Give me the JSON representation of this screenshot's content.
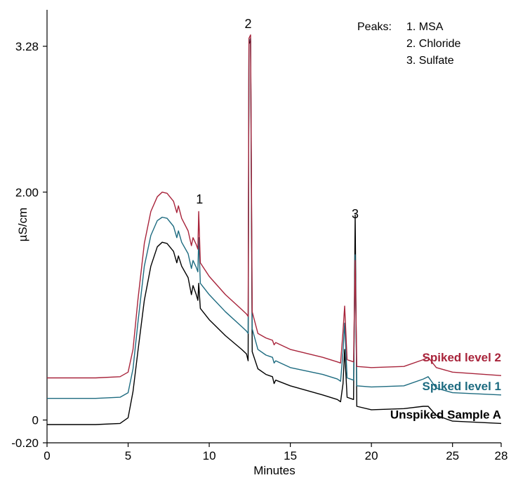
{
  "chart_data": {
    "type": "line",
    "xlabel": "Minutes",
    "ylabel": "µS/cm",
    "xlim": [
      0,
      28
    ],
    "ylim": [
      -0.2,
      3.6
    ],
    "x_ticks": [
      {
        "value": 0,
        "label": "0"
      },
      {
        "value": 5,
        "label": "5"
      },
      {
        "value": 10,
        "label": "10"
      },
      {
        "value": 15,
        "label": "15"
      },
      {
        "value": 20,
        "label": "20"
      },
      {
        "value": 25,
        "label": "25"
      },
      {
        "value": 28,
        "label": "28"
      }
    ],
    "y_ticks": [
      {
        "value": -0.2,
        "label": "-0.20"
      },
      {
        "value": 0,
        "label": "0"
      },
      {
        "value": 2.0,
        "label": "2.00"
      },
      {
        "value": 3.28,
        "label": "3.28"
      }
    ],
    "peak_labels": [
      {
        "label": "1",
        "x": 9.4,
        "y": 1.9
      },
      {
        "label": "2",
        "x": 12.4,
        "y": 3.44
      },
      {
        "label": "3",
        "x": 19.0,
        "y": 1.77
      }
    ],
    "legend": {
      "title": "Peaks:",
      "items": [
        "1. MSA",
        "2. Chloride",
        "3. Sulfate"
      ]
    },
    "series": [
      {
        "name": "Unspiked Sample A",
        "color": "#000000",
        "label_x": 28,
        "label_y": 0.05,
        "points": [
          [
            0,
            -0.04
          ],
          [
            3,
            -0.04
          ],
          [
            4.5,
            -0.03
          ],
          [
            5,
            0.02
          ],
          [
            5.3,
            0.25
          ],
          [
            5.6,
            0.6
          ],
          [
            6,
            1.05
          ],
          [
            6.4,
            1.35
          ],
          [
            6.8,
            1.52
          ],
          [
            7.1,
            1.56
          ],
          [
            7.4,
            1.55
          ],
          [
            7.8,
            1.48
          ],
          [
            8.0,
            1.38
          ],
          [
            8.1,
            1.44
          ],
          [
            8.3,
            1.35
          ],
          [
            8.7,
            1.25
          ],
          [
            8.9,
            1.1
          ],
          [
            9.0,
            1.18
          ],
          [
            9.2,
            1.1
          ],
          [
            9.3,
            1.05
          ],
          [
            9.35,
            1.2
          ],
          [
            9.45,
            0.98
          ],
          [
            10,
            0.88
          ],
          [
            11,
            0.74
          ],
          [
            12,
            0.62
          ],
          [
            12.3,
            0.58
          ],
          [
            12.4,
            0.52
          ],
          [
            12.45,
            3.3
          ],
          [
            12.55,
            3.33
          ],
          [
            12.65,
            0.6
          ],
          [
            13,
            0.45
          ],
          [
            13.5,
            0.4
          ],
          [
            13.9,
            0.38
          ],
          [
            14.0,
            0.32
          ],
          [
            14.1,
            0.35
          ],
          [
            15,
            0.3
          ],
          [
            17,
            0.22
          ],
          [
            17.9,
            0.18
          ],
          [
            18.1,
            0.16
          ],
          [
            18.25,
            0.32
          ],
          [
            18.35,
            0.62
          ],
          [
            18.5,
            0.2
          ],
          [
            18.9,
            0.18
          ],
          [
            19.0,
            1.8
          ],
          [
            19.1,
            0.12
          ],
          [
            20,
            0.09
          ],
          [
            22,
            0.1
          ],
          [
            23.2,
            0.12
          ],
          [
            23.5,
            0.12
          ],
          [
            24,
            0.04
          ],
          [
            25,
            -0.01
          ],
          [
            28,
            -0.03
          ]
        ]
      },
      {
        "name": "Spiked level 1",
        "color": "#1d6b80",
        "label_x": 28,
        "label_y": 0.3,
        "points": [
          [
            0,
            0.19
          ],
          [
            3,
            0.19
          ],
          [
            4.5,
            0.2
          ],
          [
            5,
            0.24
          ],
          [
            5.3,
            0.45
          ],
          [
            5.6,
            0.85
          ],
          [
            6,
            1.35
          ],
          [
            6.4,
            1.62
          ],
          [
            6.8,
            1.75
          ],
          [
            7.1,
            1.78
          ],
          [
            7.4,
            1.77
          ],
          [
            7.8,
            1.7
          ],
          [
            8.0,
            1.6
          ],
          [
            8.1,
            1.66
          ],
          [
            8.3,
            1.56
          ],
          [
            8.7,
            1.46
          ],
          [
            8.9,
            1.33
          ],
          [
            9.0,
            1.4
          ],
          [
            9.2,
            1.34
          ],
          [
            9.3,
            1.3
          ],
          [
            9.35,
            1.6
          ],
          [
            9.45,
            1.2
          ],
          [
            10,
            1.1
          ],
          [
            11,
            0.95
          ],
          [
            12,
            0.82
          ],
          [
            12.3,
            0.78
          ],
          [
            12.4,
            0.76
          ],
          [
            12.45,
            3.32
          ],
          [
            12.55,
            3.35
          ],
          [
            12.65,
            0.8
          ],
          [
            13,
            0.62
          ],
          [
            13.5,
            0.57
          ],
          [
            13.9,
            0.55
          ],
          [
            14.0,
            0.5
          ],
          [
            14.1,
            0.52
          ],
          [
            15,
            0.46
          ],
          [
            17,
            0.4
          ],
          [
            17.9,
            0.36
          ],
          [
            18.1,
            0.34
          ],
          [
            18.25,
            0.6
          ],
          [
            18.35,
            0.85
          ],
          [
            18.5,
            0.37
          ],
          [
            18.9,
            0.35
          ],
          [
            19.0,
            1.45
          ],
          [
            19.1,
            0.3
          ],
          [
            20,
            0.29
          ],
          [
            22,
            0.3
          ],
          [
            23.2,
            0.36
          ],
          [
            23.5,
            0.38
          ],
          [
            24,
            0.28
          ],
          [
            25,
            0.24
          ],
          [
            28,
            0.22
          ]
        ]
      },
      {
        "name": "Spiked level 2",
        "color": "#a8243b",
        "label_x": 28,
        "label_y": 0.55,
        "points": [
          [
            0,
            0.37
          ],
          [
            3,
            0.37
          ],
          [
            4.5,
            0.38
          ],
          [
            5,
            0.42
          ],
          [
            5.3,
            0.62
          ],
          [
            5.6,
            1.05
          ],
          [
            6,
            1.55
          ],
          [
            6.4,
            1.83
          ],
          [
            6.8,
            1.96
          ],
          [
            7.1,
            2.0
          ],
          [
            7.4,
            1.99
          ],
          [
            7.8,
            1.92
          ],
          [
            8.0,
            1.82
          ],
          [
            8.1,
            1.88
          ],
          [
            8.3,
            1.77
          ],
          [
            8.7,
            1.66
          ],
          [
            8.9,
            1.53
          ],
          [
            9.0,
            1.6
          ],
          [
            9.2,
            1.54
          ],
          [
            9.3,
            1.5
          ],
          [
            9.35,
            1.83
          ],
          [
            9.45,
            1.38
          ],
          [
            10,
            1.26
          ],
          [
            11,
            1.1
          ],
          [
            12,
            0.97
          ],
          [
            12.3,
            0.93
          ],
          [
            12.4,
            0.91
          ],
          [
            12.45,
            3.35
          ],
          [
            12.55,
            3.38
          ],
          [
            12.65,
            0.95
          ],
          [
            13,
            0.76
          ],
          [
            13.5,
            0.72
          ],
          [
            13.9,
            0.7
          ],
          [
            14.0,
            0.66
          ],
          [
            14.1,
            0.68
          ],
          [
            15,
            0.62
          ],
          [
            17,
            0.55
          ],
          [
            17.9,
            0.51
          ],
          [
            18.1,
            0.5
          ],
          [
            18.25,
            0.78
          ],
          [
            18.35,
            1.0
          ],
          [
            18.5,
            0.53
          ],
          [
            18.9,
            0.51
          ],
          [
            19.0,
            1.4
          ],
          [
            19.1,
            0.47
          ],
          [
            20,
            0.46
          ],
          [
            22,
            0.47
          ],
          [
            23.2,
            0.53
          ],
          [
            23.5,
            0.55
          ],
          [
            24,
            0.46
          ],
          [
            25,
            0.42
          ],
          [
            28,
            0.39
          ]
        ]
      }
    ]
  }
}
